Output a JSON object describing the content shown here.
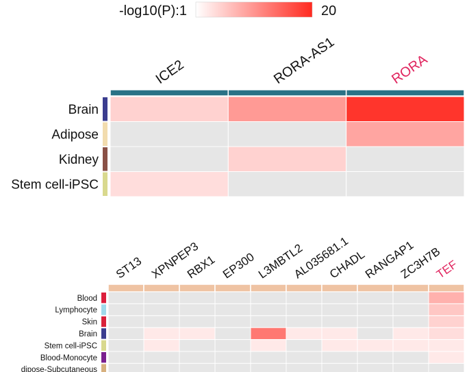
{
  "legend": {
    "label": "-log10(P):1",
    "max_label": "20",
    "min_value": 1,
    "max_value": 20,
    "color_low": "#ffffff",
    "color_high": "#ff2a20"
  },
  "colors": {
    "empty_cell": "#e6e6e6",
    "top_header_bar": "#2a7286",
    "bottom_header_bar": "#efc3a3",
    "highlight_gene": "#e0245e",
    "text": "#111111"
  },
  "chart_data": [
    {
      "type": "heatmap",
      "title": "",
      "value_label": "-log10(P)",
      "columns": [
        "ICE2",
        "RORA-AS1",
        "RORA"
      ],
      "highlighted_column": "RORA",
      "rows": [
        {
          "name": "Brain",
          "color": "#3b3d8f",
          "values": [
            5,
            10,
            19
          ]
        },
        {
          "name": "Adipose",
          "color": "#f2dcae",
          "values": [
            null,
            null,
            9
          ]
        },
        {
          "name": "Kidney",
          "color": "#8a5146",
          "values": [
            null,
            5,
            null
          ]
        },
        {
          "name": "Stem cell-iPSC",
          "color": "#d9d98e",
          "values": [
            4,
            null,
            null
          ]
        }
      ]
    },
    {
      "type": "heatmap",
      "title": "",
      "value_label": "-log10(P)",
      "columns": [
        "ST13",
        "XPNPEP3",
        "RBX1",
        "EP300",
        "L3MBTL2",
        "AL035681.1",
        "CHADL",
        "RANGAP1",
        "ZC3H7B",
        "TEF"
      ],
      "highlighted_column": "TEF",
      "rows": [
        {
          "name": "Blood",
          "color": "#dc1e3c",
          "values": [
            null,
            null,
            null,
            null,
            null,
            null,
            null,
            null,
            null,
            8
          ]
        },
        {
          "name": "Lymphocyte",
          "color": "#9fdaea",
          "values": [
            null,
            null,
            null,
            null,
            null,
            null,
            null,
            null,
            null,
            6
          ]
        },
        {
          "name": "Skin",
          "color": "#d9213a",
          "values": [
            null,
            null,
            null,
            null,
            null,
            null,
            null,
            null,
            null,
            5
          ]
        },
        {
          "name": "Brain",
          "color": "#3b3d8f",
          "values": [
            null,
            3,
            3,
            null,
            13,
            3,
            3,
            null,
            3,
            4
          ]
        },
        {
          "name": "Stem cell-iPSC",
          "color": "#d9d98e",
          "values": [
            null,
            3,
            null,
            null,
            3,
            null,
            3,
            3,
            3,
            3
          ]
        },
        {
          "name": "Blood-Monocyte",
          "color": "#7a1f8e",
          "values": [
            null,
            null,
            null,
            null,
            null,
            null,
            null,
            null,
            null,
            3
          ]
        },
        {
          "name": "dipose-Subcutaneous",
          "color": "#d7b07e",
          "values": [
            null,
            null,
            null,
            null,
            null,
            null,
            null,
            null,
            null,
            null
          ]
        }
      ]
    }
  ]
}
